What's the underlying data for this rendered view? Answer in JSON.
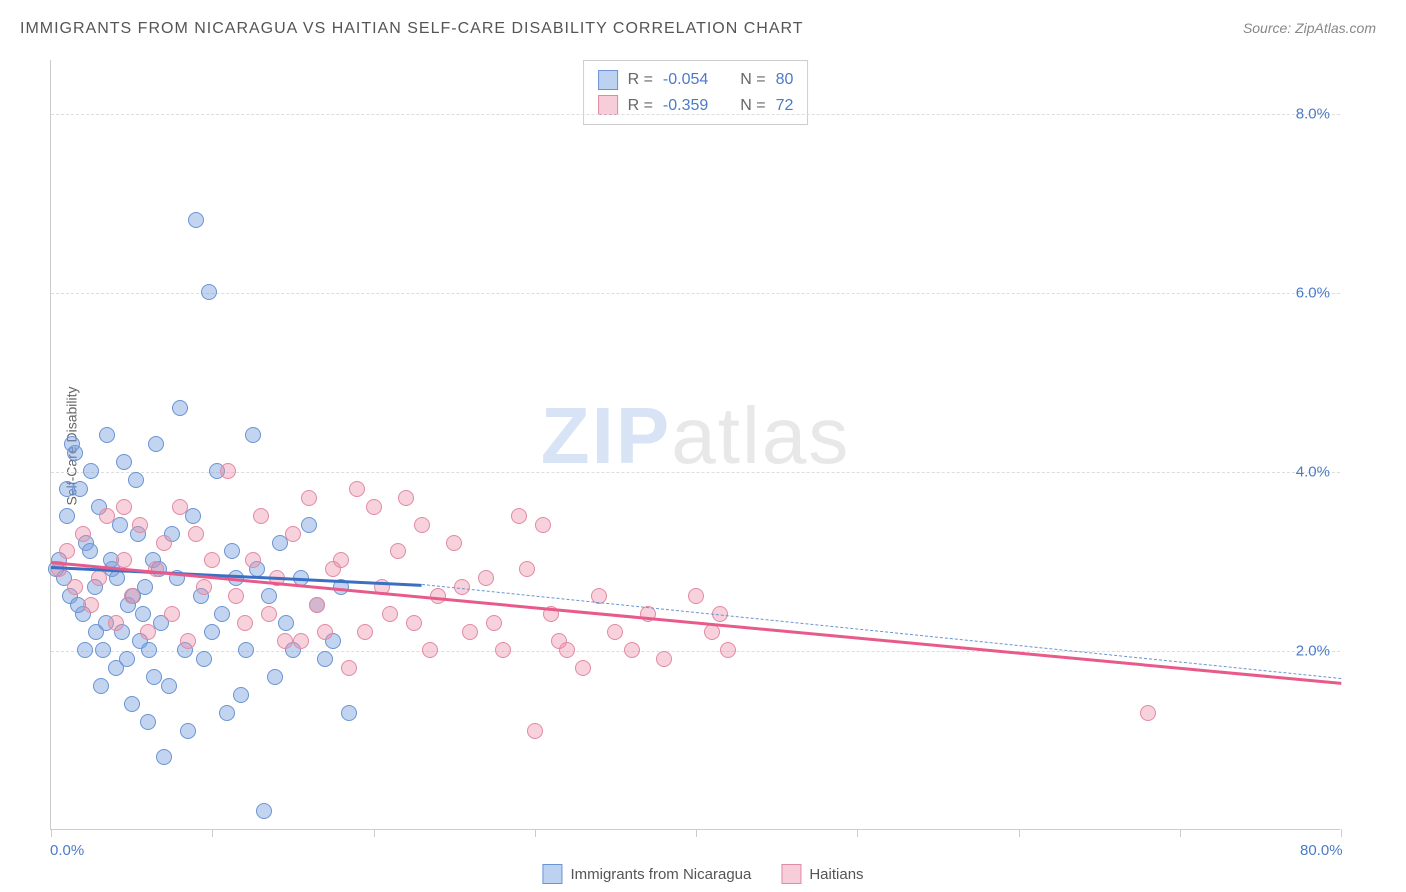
{
  "title": "IMMIGRANTS FROM NICARAGUA VS HAITIAN SELF-CARE DISABILITY CORRELATION CHART",
  "source_prefix": "Source: ",
  "source_name": "ZipAtlas.com",
  "y_axis_label": "Self-Care Disability",
  "watermark": {
    "part1": "ZIP",
    "part2": "atlas"
  },
  "chart": {
    "type": "scatter",
    "xlim": [
      0,
      80
    ],
    "ylim": [
      0,
      8.6
    ],
    "x_ticks": [
      0,
      10,
      20,
      30,
      40,
      50,
      60,
      70,
      80
    ],
    "x_tick_labels_shown": {
      "0": "0.0%",
      "80": "80.0%"
    },
    "y_ticks": [
      2,
      4,
      6,
      8
    ],
    "y_tick_labels": [
      "2.0%",
      "4.0%",
      "6.0%",
      "8.0%"
    ],
    "background_color": "#ffffff",
    "grid_color": "#dddddd",
    "axis_color": "#cccccc",
    "tick_label_color": "#4a7bc8",
    "marker_radius": 8,
    "series": [
      {
        "name": "Immigrants from Nicaragua",
        "legend_label": "Immigrants from Nicaragua",
        "fill_color": "rgba(120,160,220,0.45)",
        "stroke_color": "#6a94d4",
        "swatch_fill": "#bcd2f0",
        "swatch_border": "#6a94d4",
        "R_label": "R = ",
        "R_value": "-0.054",
        "N_label": "N = ",
        "N_value": "80",
        "trend": {
          "x1": 0,
          "y1": 2.95,
          "x2": 23,
          "y2": 2.75,
          "color": "#3b6fc4",
          "width": 2.5
        },
        "trend_dash": {
          "x1": 23,
          "y1": 2.75,
          "x2": 80,
          "y2": 1.7,
          "color": "#6a94d4",
          "width": 1.5,
          "dashed": true
        },
        "points": [
          [
            0.3,
            2.9
          ],
          [
            0.5,
            3.0
          ],
          [
            0.8,
            2.8
          ],
          [
            1.0,
            3.5
          ],
          [
            1.2,
            2.6
          ],
          [
            1.5,
            4.2
          ],
          [
            1.8,
            3.8
          ],
          [
            2.0,
            2.4
          ],
          [
            2.2,
            3.2
          ],
          [
            2.5,
            4.0
          ],
          [
            2.8,
            2.2
          ],
          [
            3.0,
            3.6
          ],
          [
            3.2,
            2.0
          ],
          [
            3.5,
            4.4
          ],
          [
            3.8,
            2.9
          ],
          [
            4.0,
            1.8
          ],
          [
            4.3,
            3.4
          ],
          [
            4.5,
            4.1
          ],
          [
            4.8,
            2.5
          ],
          [
            5.0,
            1.4
          ],
          [
            5.3,
            3.9
          ],
          [
            5.5,
            2.1
          ],
          [
            5.8,
            2.7
          ],
          [
            6.0,
            1.2
          ],
          [
            6.3,
            3.0
          ],
          [
            6.5,
            4.3
          ],
          [
            6.8,
            2.3
          ],
          [
            7.0,
            0.8
          ],
          [
            7.3,
            1.6
          ],
          [
            7.5,
            3.3
          ],
          [
            7.8,
            2.8
          ],
          [
            8.0,
            4.7
          ],
          [
            8.3,
            2.0
          ],
          [
            8.5,
            1.1
          ],
          [
            8.8,
            3.5
          ],
          [
            9.0,
            6.8
          ],
          [
            9.3,
            2.6
          ],
          [
            9.5,
            1.9
          ],
          [
            9.8,
            6.0
          ],
          [
            10.0,
            2.2
          ],
          [
            10.3,
            4.0
          ],
          [
            10.6,
            2.4
          ],
          [
            10.9,
            1.3
          ],
          [
            11.2,
            3.1
          ],
          [
            11.5,
            2.8
          ],
          [
            11.8,
            1.5
          ],
          [
            12.1,
            2.0
          ],
          [
            12.5,
            4.4
          ],
          [
            12.8,
            2.9
          ],
          [
            13.2,
            0.2
          ],
          [
            13.5,
            2.6
          ],
          [
            13.9,
            1.7
          ],
          [
            14.2,
            3.2
          ],
          [
            14.6,
            2.3
          ],
          [
            15.0,
            2.0
          ],
          [
            15.5,
            2.8
          ],
          [
            16.0,
            3.4
          ],
          [
            16.5,
            2.5
          ],
          [
            17.0,
            1.9
          ],
          [
            17.5,
            2.1
          ],
          [
            18.0,
            2.7
          ],
          [
            1.0,
            3.8
          ],
          [
            1.3,
            4.3
          ],
          [
            1.7,
            2.5
          ],
          [
            2.1,
            2.0
          ],
          [
            2.4,
            3.1
          ],
          [
            2.7,
            2.7
          ],
          [
            3.1,
            1.6
          ],
          [
            3.4,
            2.3
          ],
          [
            3.7,
            3.0
          ],
          [
            4.1,
            2.8
          ],
          [
            4.4,
            2.2
          ],
          [
            4.7,
            1.9
          ],
          [
            5.1,
            2.6
          ],
          [
            5.4,
            3.3
          ],
          [
            5.7,
            2.4
          ],
          [
            6.1,
            2.0
          ],
          [
            6.4,
            1.7
          ],
          [
            6.7,
            2.9
          ],
          [
            18.5,
            1.3
          ]
        ]
      },
      {
        "name": "Haitians",
        "legend_label": "Haitians",
        "fill_color": "rgba(235,140,165,0.40)",
        "stroke_color": "#e28aa3",
        "swatch_fill": "#f6cdd8",
        "swatch_border": "#e28aa3",
        "R_label": "R = ",
        "R_value": "-0.359",
        "N_label": "N = ",
        "N_value": "72",
        "trend": {
          "x1": 0,
          "y1": 3.0,
          "x2": 80,
          "y2": 1.65,
          "color": "#e85a8a",
          "width": 2.5
        },
        "points": [
          [
            0.5,
            2.9
          ],
          [
            1.0,
            3.1
          ],
          [
            1.5,
            2.7
          ],
          [
            2.0,
            3.3
          ],
          [
            2.5,
            2.5
          ],
          [
            3.0,
            2.8
          ],
          [
            3.5,
            3.5
          ],
          [
            4.0,
            2.3
          ],
          [
            4.5,
            3.0
          ],
          [
            5.0,
            2.6
          ],
          [
            5.5,
            3.4
          ],
          [
            6.0,
            2.2
          ],
          [
            6.5,
            2.9
          ],
          [
            7.0,
            3.2
          ],
          [
            7.5,
            2.4
          ],
          [
            8.0,
            3.6
          ],
          [
            8.5,
            2.1
          ],
          [
            9.0,
            3.3
          ],
          [
            9.5,
            2.7
          ],
          [
            10.0,
            3.0
          ],
          [
            11.0,
            4.0
          ],
          [
            12.0,
            2.3
          ],
          [
            13.0,
            3.5
          ],
          [
            14.0,
            2.8
          ],
          [
            15.0,
            3.3
          ],
          [
            16.0,
            3.7
          ],
          [
            17.0,
            2.2
          ],
          [
            18.0,
            3.0
          ],
          [
            19.0,
            3.8
          ],
          [
            20.0,
            3.6
          ],
          [
            21.0,
            2.4
          ],
          [
            22.0,
            3.7
          ],
          [
            23.0,
            3.4
          ],
          [
            24.0,
            2.6
          ],
          [
            25.0,
            3.2
          ],
          [
            26.0,
            2.2
          ],
          [
            27.0,
            2.8
          ],
          [
            28.0,
            2.0
          ],
          [
            29.0,
            3.5
          ],
          [
            30.0,
            1.1
          ],
          [
            31.0,
            2.4
          ],
          [
            32.0,
            2.0
          ],
          [
            33.0,
            1.8
          ],
          [
            34.0,
            2.6
          ],
          [
            35.0,
            2.2
          ],
          [
            36.0,
            2.0
          ],
          [
            37.0,
            2.4
          ],
          [
            38.0,
            1.9
          ],
          [
            40.0,
            2.6
          ],
          [
            42.0,
            2.0
          ],
          [
            30.5,
            3.4
          ],
          [
            14.5,
            2.1
          ],
          [
            16.5,
            2.5
          ],
          [
            18.5,
            1.8
          ],
          [
            20.5,
            2.7
          ],
          [
            22.5,
            2.3
          ],
          [
            11.5,
            2.6
          ],
          [
            12.5,
            3.0
          ],
          [
            13.5,
            2.4
          ],
          [
            15.5,
            2.1
          ],
          [
            17.5,
            2.9
          ],
          [
            19.5,
            2.2
          ],
          [
            21.5,
            3.1
          ],
          [
            23.5,
            2.0
          ],
          [
            25.5,
            2.7
          ],
          [
            27.5,
            2.3
          ],
          [
            29.5,
            2.9
          ],
          [
            31.5,
            2.1
          ],
          [
            41.0,
            2.2
          ],
          [
            41.5,
            2.4
          ],
          [
            68.0,
            1.3
          ],
          [
            4.5,
            3.6
          ]
        ]
      }
    ]
  }
}
